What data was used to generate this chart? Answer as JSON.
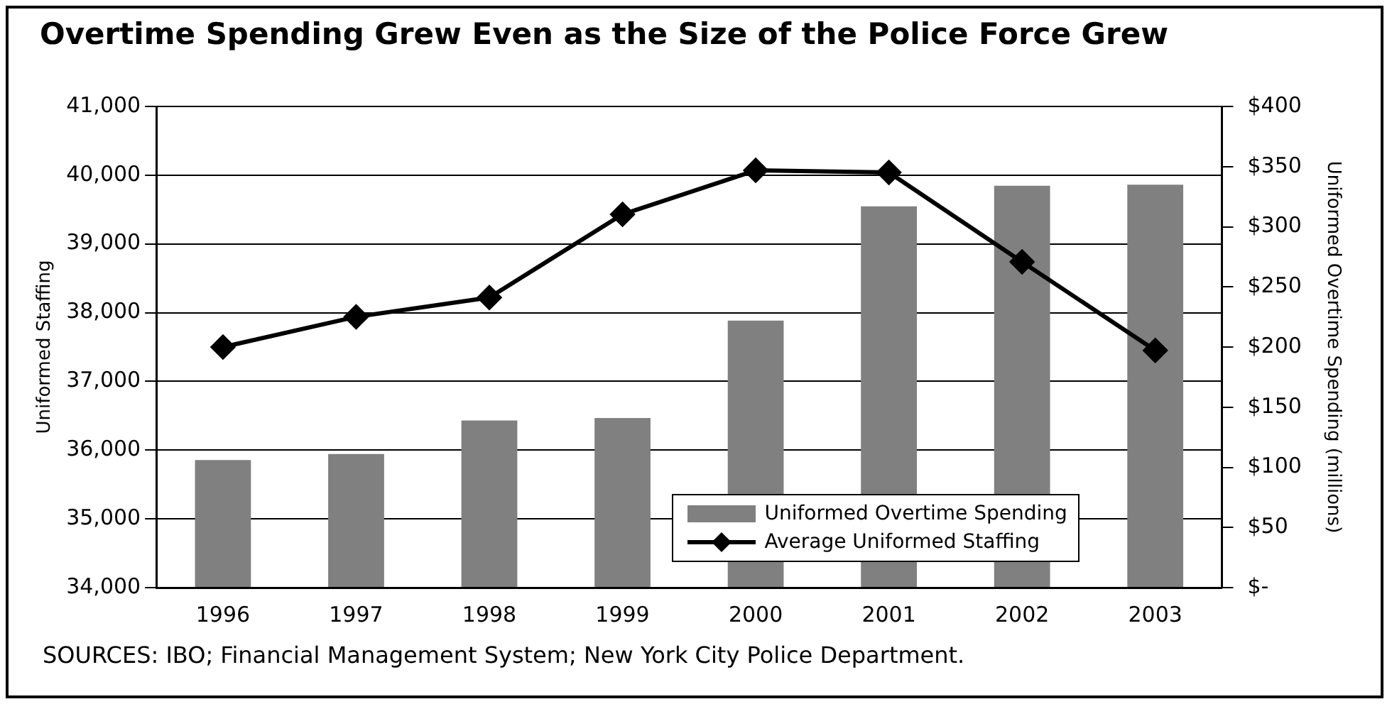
{
  "chart_data": {
    "type": "bar",
    "title": "Overtime Spending Grew Even as the Size of the Police Force Grew",
    "ylabel": "Uniformed Staffing",
    "y2label": "Uniformed Overtime Spending (millions)",
    "categories": [
      "1996",
      "1997",
      "1998",
      "1999",
      "2000",
      "2001",
      "2002",
      "2003"
    ],
    "series": [
      {
        "name": "Uniformed Overtime Spending",
        "axis": "y2",
        "color": "#808080",
        "values": [
          106,
          111,
          139,
          141,
          222,
          317,
          334,
          335
        ]
      },
      {
        "name": "Average Uniformed Staffing",
        "type": "line",
        "axis": "y",
        "color": "#000000",
        "marker": "diamond",
        "values": [
          37500,
          37940,
          38220,
          39430,
          40070,
          40040,
          38740,
          37450
        ]
      }
    ],
    "ylim": [
      34000,
      41000
    ],
    "yticks": [
      {
        "value": 34000,
        "label": "34,000"
      },
      {
        "value": 35000,
        "label": "35,000"
      },
      {
        "value": 36000,
        "label": "36,000"
      },
      {
        "value": 37000,
        "label": "37,000"
      },
      {
        "value": 38000,
        "label": "38,000"
      },
      {
        "value": 39000,
        "label": "39,000"
      },
      {
        "value": 40000,
        "label": "40,000"
      },
      {
        "value": 41000,
        "label": "41,000"
      }
    ],
    "y2lim": [
      0,
      400
    ],
    "y2ticks": [
      {
        "value": 0,
        "label": "$-"
      },
      {
        "value": 50,
        "label": "$50"
      },
      {
        "value": 100,
        "label": "$100"
      },
      {
        "value": 150,
        "label": "$150"
      },
      {
        "value": 200,
        "label": "$200"
      },
      {
        "value": 250,
        "label": "$250"
      },
      {
        "value": 300,
        "label": "$300"
      },
      {
        "value": 350,
        "label": "$350"
      },
      {
        "value": 400,
        "label": "$400"
      }
    ],
    "grid": "y",
    "legend": "bottom right",
    "annotations": [
      "SOURCES: IBO; Financial Management System; New York City Police Department."
    ]
  }
}
